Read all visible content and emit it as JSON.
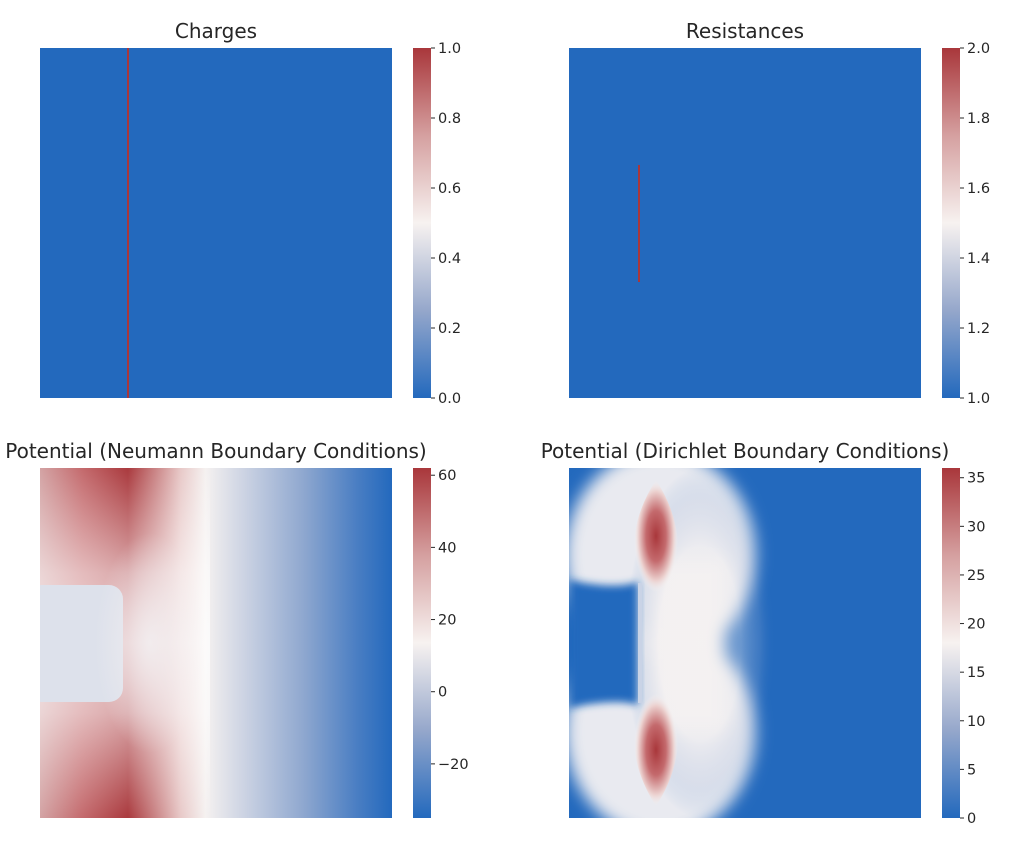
{
  "chart_data": [
    {
      "type": "heatmap",
      "title": "Charges",
      "colormap": "vlag",
      "colorbar": {
        "range": [
          0.0,
          1.0
        ],
        "ticks": [
          "0.0",
          "0.2",
          "0.4",
          "0.6",
          "0.8",
          "1.0"
        ]
      },
      "background_value": 0.0,
      "features": [
        {
          "shape": "vertical-line",
          "value": 1.0,
          "column": 0.25,
          "span": [
            0.0,
            1.0
          ]
        }
      ],
      "axes_visible": false
    },
    {
      "type": "heatmap",
      "title": "Resistances",
      "colormap": "vlag",
      "colorbar": {
        "range": [
          1.0,
          2.0
        ],
        "ticks": [
          "1.0",
          "1.2",
          "1.4",
          "1.6",
          "1.8",
          "2.0"
        ]
      },
      "background_value": 1.0,
      "features": [
        {
          "shape": "vertical-line",
          "value": 2.0,
          "column": 0.2,
          "span": [
            0.33,
            0.67
          ]
        }
      ],
      "axes_visible": false
    },
    {
      "type": "heatmap",
      "title": "Potential (Neumann Boundary Conditions)",
      "colormap": "vlag",
      "colorbar": {
        "range": [
          -35,
          62
        ],
        "ticks": [
          "−20",
          "0",
          "20",
          "40",
          "60"
        ]
      },
      "description_values": {
        "max": 62,
        "min": -35,
        "plateau": 0
      },
      "axes_visible": false
    },
    {
      "type": "heatmap",
      "title": "Potential (Dirichlet Boundary Conditions)",
      "colormap": "vlag",
      "colorbar": {
        "range": [
          0,
          36
        ],
        "ticks": [
          "0",
          "5",
          "10",
          "15",
          "20",
          "25",
          "30",
          "35"
        ]
      },
      "description_values": {
        "max": 36,
        "min": 0
      },
      "axes_visible": false
    }
  ]
}
